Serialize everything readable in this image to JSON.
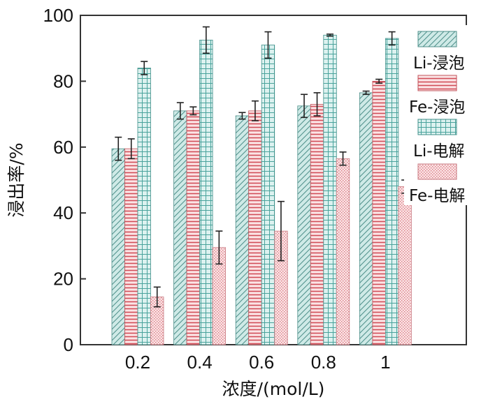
{
  "chart_data": {
    "type": "bar",
    "title": "",
    "xlabel": "浓度/(mol/L)",
    "ylabel": "浸出率/%",
    "ylim": [
      0,
      100
    ],
    "yticks": [
      "0",
      "20",
      "40",
      "60",
      "80",
      "100"
    ],
    "categories": [
      "0.2",
      "0.4",
      "0.6",
      "0.8",
      "1"
    ],
    "legend_position": "top-right",
    "series": [
      {
        "name": "Li-浸泡",
        "values": [
          59.5,
          71.0,
          69.5,
          72.5,
          76.5
        ],
        "errors": [
          3.5,
          2.5,
          1.0,
          3.5,
          0.5
        ],
        "color": "#b8e0dc",
        "pattern": "diagonal"
      },
      {
        "name": "Fe-浸泡",
        "values": [
          59.5,
          71.0,
          71.0,
          73.0,
          80.0
        ],
        "errors": [
          3.0,
          1.2,
          3.0,
          3.5,
          0.6
        ],
        "color": "#f2b8bc",
        "pattern": "horizontal"
      },
      {
        "name": "Li-电解",
        "values": [
          84.0,
          92.5,
          91.0,
          94.0,
          93.0
        ],
        "errors": [
          2.0,
          4.0,
          4.0,
          0.3,
          2.0
        ],
        "color": "#bde6e3",
        "pattern": "grid"
      },
      {
        "name": "Fe-电解",
        "values": [
          14.5,
          29.5,
          34.5,
          56.5,
          48.0
        ],
        "errors": [
          3.0,
          5.0,
          9.0,
          2.0,
          2.0
        ],
        "color": "#f5c6ca",
        "pattern": "dots"
      }
    ]
  }
}
